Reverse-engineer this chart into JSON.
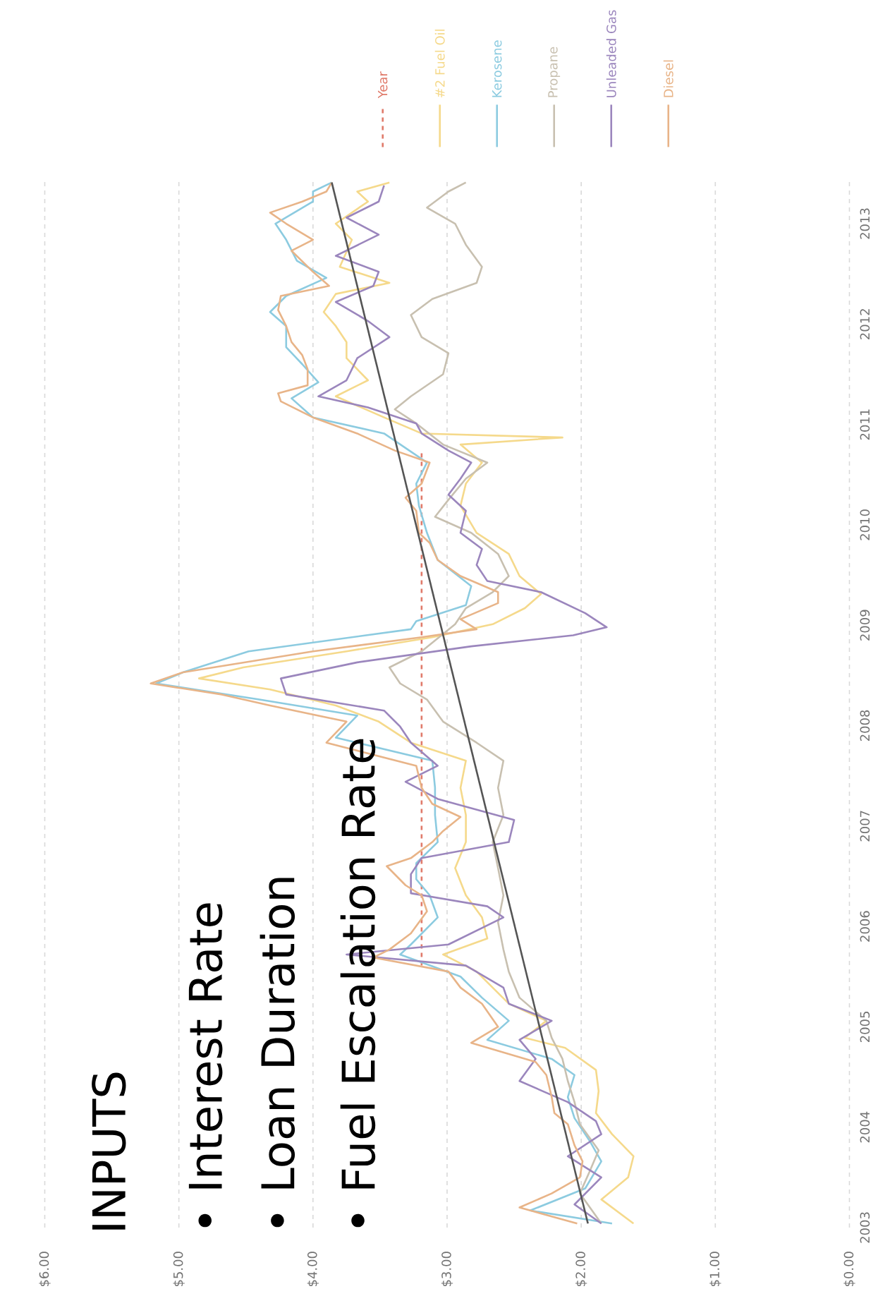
{
  "chart_data": {
    "type": "line",
    "orientation": "horizontal",
    "xlim": [
      6,
      0
    ],
    "ylim": [
      2003,
      2013.45
    ],
    "yticks": [
      2003,
      2004,
      2005,
      2006,
      2007,
      2008,
      2009,
      2010,
      2011,
      2012,
      2013
    ],
    "xticks": [
      {
        "value": 0,
        "label": "$0.00"
      },
      {
        "value": 1,
        "label": "$1.00"
      },
      {
        "value": 2,
        "label": "$2.00"
      },
      {
        "value": 3,
        "label": "$3.00"
      },
      {
        "value": 4,
        "label": "$4.00"
      },
      {
        "value": 5,
        "label": "$5.00"
      },
      {
        "value": 6,
        "label": "$6.00"
      }
    ],
    "grid": "x",
    "legend": "top",
    "annotations": [
      "INPUTS",
      "• Interest Rate",
      "• Loan Duration",
      "• Fuel Escalation Rate"
    ],
    "series": [
      {
        "name": "Year",
        "color": "#e07a6a",
        "line_style": "dashed",
        "x": [
          2005.61,
          2010.73
        ],
        "values": [
          3.19,
          3.19
        ]
      },
      {
        "name": "#2 Fuel Oil",
        "color": "#f5d98b",
        "x": [
          2003.04,
          2003.28,
          2003.5,
          2003.71,
          2003.93,
          2004.14,
          2004.36,
          2004.57,
          2004.79,
          2004.89,
          2005.06,
          2005.23,
          2005.55,
          2005.72,
          2005.88,
          2006.09,
          2006.31,
          2006.58,
          2006.84,
          2007.11,
          2007.38,
          2007.65,
          2007.83,
          2008.04,
          2008.2,
          2008.36,
          2008.47,
          2008.58,
          2008.74,
          2008.88,
          2009.01,
          2009.17,
          2009.31,
          2009.49,
          2009.71,
          2009.92,
          2010.19,
          2010.41,
          2010.62,
          2010.8,
          2010.87,
          2010.91,
          2011.07,
          2011.28,
          2011.44,
          2011.66,
          2011.82,
          2011.98,
          2012.12,
          2012.3,
          2012.41,
          2012.57,
          2012.84,
          2013.0,
          2013.22,
          2013.32,
          2013.41
        ],
        "values": [
          1.61,
          1.85,
          1.65,
          1.61,
          1.77,
          1.89,
          1.87,
          1.89,
          2.12,
          2.42,
          2.26,
          2.54,
          2.78,
          3.03,
          2.7,
          2.74,
          2.86,
          2.94,
          2.86,
          2.86,
          2.9,
          2.86,
          3.27,
          3.51,
          3.83,
          4.32,
          4.85,
          4.52,
          3.75,
          3.11,
          2.66,
          2.42,
          2.3,
          2.46,
          2.54,
          2.78,
          2.9,
          2.86,
          2.74,
          2.9,
          2.14,
          3.19,
          3.47,
          3.83,
          3.59,
          3.75,
          3.75,
          3.83,
          3.92,
          3.83,
          3.43,
          3.8,
          3.71,
          3.83,
          3.59,
          3.67,
          3.43
        ]
      },
      {
        "name": "Kerosene",
        "color": "#8ccbe0",
        "x": [
          2003.04,
          2003.17,
          2003.39,
          2003.66,
          2003.87,
          2004.09,
          2004.3,
          2004.52,
          2004.68,
          2004.87,
          2005.06,
          2005.29,
          2005.5,
          2005.72,
          2005.82,
          2006.09,
          2006.31,
          2006.47,
          2006.63,
          2006.84,
          2007.11,
          2007.38,
          2007.65,
          2007.88,
          2008.1,
          2008.26,
          2008.42,
          2008.53,
          2008.74,
          2008.96,
          2009.04,
          2009.2,
          2009.39,
          2009.65,
          2009.92,
          2010.19,
          2010.41,
          2010.62,
          2010.91,
          2011.07,
          2011.26,
          2011.42,
          2011.6,
          2011.77,
          2011.98,
          2012.12,
          2012.28,
          2012.46,
          2012.63,
          2012.84,
          2013.0,
          2013.22,
          2013.32,
          2013.41
        ],
        "values": [
          1.77,
          2.38,
          1.97,
          1.85,
          1.94,
          2.05,
          2.1,
          2.05,
          2.22,
          2.7,
          2.54,
          2.74,
          2.9,
          3.35,
          3.27,
          3.07,
          3.13,
          3.23,
          3.23,
          3.07,
          3.09,
          3.09,
          3.11,
          3.83,
          3.67,
          4.4,
          5.17,
          4.97,
          4.48,
          3.27,
          3.23,
          2.86,
          2.82,
          3.07,
          3.15,
          3.21,
          3.23,
          3.15,
          3.47,
          4.0,
          4.16,
          3.96,
          4.08,
          4.2,
          4.2,
          4.32,
          4.2,
          3.9,
          4.12,
          4.2,
          4.28,
          4.0,
          4.0,
          3.86
        ]
      },
      {
        "name": "Propane",
        "color": "#c8c0b0",
        "x": [
          2003.04,
          2003.34,
          2003.55,
          2003.77,
          2004.03,
          2004.25,
          2004.46,
          2004.68,
          2004.89,
          2005.06,
          2005.29,
          2005.55,
          2005.77,
          2006.04,
          2006.31,
          2006.58,
          2006.84,
          2007.11,
          2007.38,
          2007.65,
          2007.83,
          2008.04,
          2008.26,
          2008.42,
          2008.58,
          2008.74,
          2009.01,
          2009.17,
          2009.33,
          2009.49,
          2009.71,
          2009.92,
          2010.08,
          2010.25,
          2010.46,
          2010.62,
          2010.8,
          2011.01,
          2011.15,
          2011.28,
          2011.5,
          2011.71,
          2011.87,
          2012.09,
          2012.25,
          2012.41,
          2012.57,
          2012.79,
          2013.0,
          2013.16,
          2013.32,
          2013.41
        ],
        "values": [
          1.85,
          2.01,
          1.94,
          1.87,
          2.01,
          2.05,
          2.1,
          2.14,
          2.22,
          2.26,
          2.46,
          2.54,
          2.58,
          2.62,
          2.58,
          2.62,
          2.66,
          2.58,
          2.62,
          2.58,
          2.78,
          3.03,
          3.15,
          3.35,
          3.43,
          3.19,
          2.94,
          2.86,
          2.66,
          2.54,
          2.62,
          2.82,
          3.09,
          2.99,
          2.86,
          2.7,
          3.03,
          3.23,
          3.39,
          3.27,
          3.03,
          2.99,
          3.19,
          3.27,
          3.11,
          2.78,
          2.74,
          2.86,
          2.94,
          3.15,
          2.99,
          2.86
        ]
      },
      {
        "name": "Unleaded Gas",
        "color": "#9b86bd",
        "x": [
          2003.04,
          2003.23,
          2003.5,
          2003.71,
          2003.93,
          2004.06,
          2004.25,
          2004.46,
          2004.68,
          2004.87,
          2005.06,
          2005.23,
          2005.39,
          2005.61,
          2005.72,
          2005.82,
          2006.09,
          2006.2,
          2006.33,
          2006.52,
          2006.68,
          2006.84,
          2007.06,
          2007.27,
          2007.44,
          2007.6,
          2007.83,
          2007.99,
          2008.15,
          2008.31,
          2008.47,
          2008.63,
          2008.79,
          2008.9,
          2008.98,
          2009.12,
          2009.33,
          2009.44,
          2009.6,
          2009.76,
          2009.92,
          2010.14,
          2010.3,
          2010.46,
          2010.62,
          2010.74,
          2010.91,
          2011.01,
          2011.17,
          2011.28,
          2011.44,
          2011.66,
          2011.87,
          2012.03,
          2012.22,
          2012.38,
          2012.52,
          2012.68,
          2012.89,
          2013.06,
          2013.22,
          2013.38
        ],
        "values": [
          1.85,
          2.05,
          1.85,
          2.1,
          1.85,
          1.89,
          2.1,
          2.46,
          2.34,
          2.46,
          2.22,
          2.54,
          2.58,
          2.86,
          3.75,
          2.99,
          2.58,
          2.7,
          3.27,
          3.27,
          3.19,
          2.54,
          2.5,
          3.07,
          3.31,
          3.07,
          3.27,
          3.35,
          3.47,
          4.2,
          4.24,
          3.67,
          2.82,
          2.06,
          1.81,
          1.97,
          2.3,
          2.7,
          2.78,
          2.74,
          2.9,
          2.86,
          2.99,
          2.9,
          2.82,
          2.99,
          3.19,
          3.23,
          3.59,
          3.96,
          3.75,
          3.67,
          3.43,
          3.59,
          3.83,
          3.55,
          3.51,
          3.83,
          3.51,
          3.75,
          3.51,
          3.47
        ]
      },
      {
        "name": "Diesel",
        "color": "#e8b488",
        "x": [
          2003.04,
          2003.2,
          2003.34,
          2003.5,
          2003.66,
          2003.82,
          2004.03,
          2004.14,
          2004.3,
          2004.52,
          2004.65,
          2004.84,
          2005.0,
          2005.23,
          2005.39,
          2005.55,
          2005.69,
          2005.77,
          2005.93,
          2006.15,
          2006.31,
          2006.41,
          2006.6,
          2006.68,
          2006.84,
          2006.95,
          2007.09,
          2007.22,
          2007.38,
          2007.6,
          2007.83,
          2008.04,
          2008.2,
          2008.31,
          2008.42,
          2008.53,
          2008.74,
          2008.88,
          2008.96,
          2009.06,
          2009.22,
          2009.33,
          2009.49,
          2009.65,
          2009.82,
          2009.92,
          2010.14,
          2010.27,
          2010.41,
          2010.62,
          2010.74,
          2010.91,
          2011.07,
          2011.23,
          2011.31,
          2011.39,
          2011.55,
          2011.69,
          2011.82,
          2011.98,
          2012.14,
          2012.28,
          2012.38,
          2012.52,
          2012.73,
          2012.84,
          2013.0,
          2013.11,
          2013.22,
          2013.32,
          2013.41
        ],
        "values": [
          2.03,
          2.46,
          2.22,
          2.01,
          1.99,
          2.05,
          2.1,
          2.2,
          2.22,
          2.26,
          2.34,
          2.82,
          2.62,
          2.74,
          2.9,
          2.99,
          3.55,
          3.43,
          3.27,
          3.15,
          3.19,
          3.31,
          3.45,
          3.27,
          3.11,
          3.03,
          2.9,
          3.11,
          3.19,
          3.23,
          3.9,
          3.75,
          4.32,
          4.68,
          5.21,
          4.97,
          4.0,
          3.19,
          2.78,
          2.9,
          2.62,
          2.62,
          2.9,
          3.07,
          3.13,
          3.21,
          3.23,
          3.31,
          3.19,
          3.13,
          3.39,
          3.67,
          4.0,
          4.24,
          4.26,
          4.04,
          4.04,
          4.08,
          4.16,
          4.2,
          4.26,
          4.24,
          3.88,
          4.0,
          4.16,
          4.0,
          4.2,
          4.32,
          4.08,
          3.9,
          3.86
        ]
      },
      {
        "type": "line",
        "color": "#555555",
        "x": [
          2003.04,
          2013.41
        ],
        "values": [
          1.95,
          3.86
        ]
      }
    ]
  }
}
